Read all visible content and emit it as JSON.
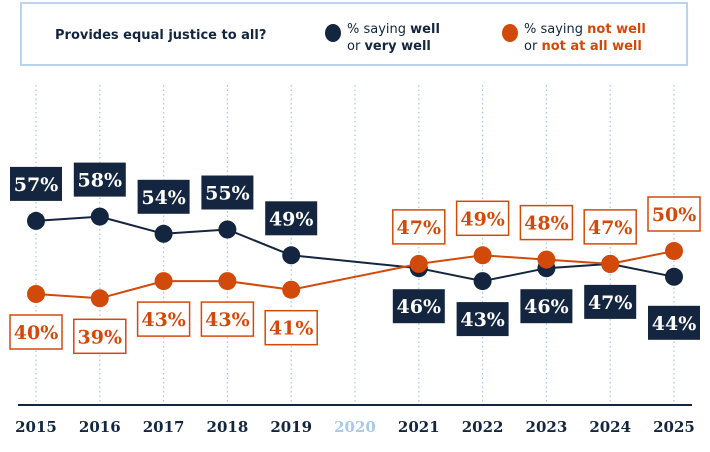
{
  "legend": {
    "title": "Provides equal justice to all?",
    "series": [
      {
        "prefix": "% saying ",
        "bold1": "well",
        "mid": "or ",
        "bold2": "very well"
      },
      {
        "prefix": "% saying ",
        "bold1": "not well",
        "mid": "or ",
        "bold2": "not at all well"
      }
    ]
  },
  "chart_data": {
    "type": "line",
    "title": "Provides equal justice to all?",
    "x": [
      "2015",
      "2016",
      "2017",
      "2018",
      "2019",
      "2020",
      "2021",
      "2022",
      "2023",
      "2024",
      "2025"
    ],
    "missing_x": [
      "2020"
    ],
    "grid": "vertical dotted",
    "series": [
      {
        "name": "% saying well or very well",
        "color": "#14263f",
        "values": [
          57,
          58,
          54,
          55,
          49,
          null,
          46,
          43,
          46,
          47,
          44
        ],
        "labels": [
          "57%",
          "58%",
          "54%",
          "55%",
          "49%",
          null,
          "46%",
          "43%",
          "46%",
          "47%",
          "44%"
        ]
      },
      {
        "name": "% saying not well or not at all well",
        "color": "#d24a0a",
        "values": [
          40,
          39,
          43,
          43,
          41,
          null,
          47,
          49,
          48,
          47,
          50
        ],
        "labels": [
          "40%",
          "39%",
          "43%",
          "43%",
          "41%",
          null,
          "47%",
          "49%",
          "48%",
          "47%",
          "50%"
        ]
      }
    ],
    "colors": {
      "dark": "#14263f",
      "orange": "#d24a0a",
      "grid": "#a9c9ea",
      "missing_year": "#a9c9ea"
    }
  }
}
